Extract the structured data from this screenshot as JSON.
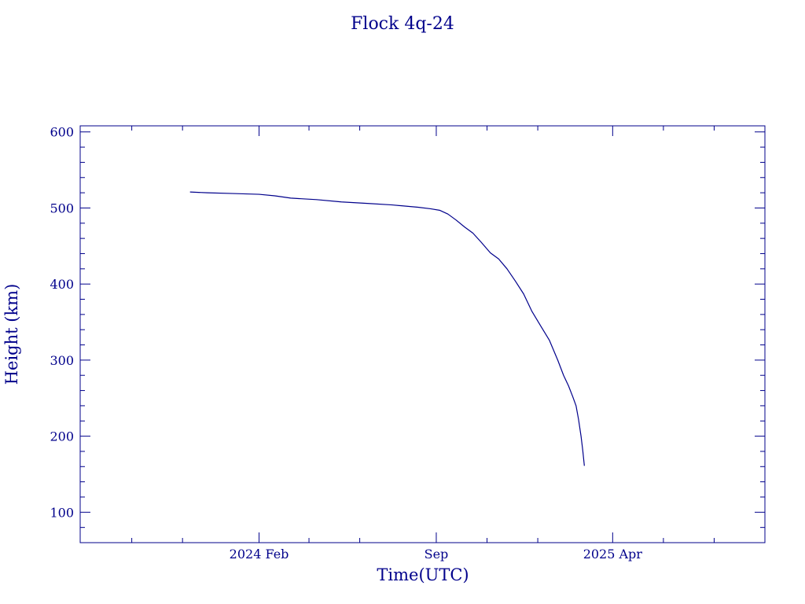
{
  "chart_data": {
    "type": "line",
    "title": "Flock 4q-24",
    "xlabel": "Time(UTC)",
    "ylabel": "Height (km)",
    "color": "#00008b",
    "grid": false,
    "legend": "none",
    "xlim": [
      "2023-07-01",
      "2025-10-01"
    ],
    "ylim": [
      60,
      608
    ],
    "x_ticks": [
      {
        "value": "2024-02-01",
        "label": "2024 Feb"
      },
      {
        "value": "2024-09-01",
        "label": "Sep"
      },
      {
        "value": "2025-04-01",
        "label": "2025 Apr"
      }
    ],
    "x_minor_ticks": [
      "2023-09-01",
      "2023-11-01",
      "2024-04-01",
      "2024-06-01",
      "2024-11-01",
      "2025-01-01",
      "2025-06-01",
      "2025-08-01"
    ],
    "y_ticks": [
      100,
      200,
      300,
      400,
      500,
      600
    ],
    "y_minor_step": 20,
    "series": [
      {
        "x": [
          "2023-11-10",
          "2023-12-01",
          "2024-01-01",
          "2024-02-01",
          "2024-02-20",
          "2024-03-10",
          "2024-04-10",
          "2024-05-10",
          "2024-06-10",
          "2024-07-10",
          "2024-08-10",
          "2024-08-25",
          "2024-09-05",
          "2024-09-15",
          "2024-09-25",
          "2024-10-05",
          "2024-10-15",
          "2024-10-25",
          "2024-11-05",
          "2024-11-15",
          "2024-11-25",
          "2024-12-05",
          "2024-12-15",
          "2024-12-25",
          "2025-01-05",
          "2025-01-15",
          "2025-01-25",
          "2025-02-01",
          "2025-02-07",
          "2025-02-12",
          "2025-02-16",
          "2025-02-19",
          "2025-02-22",
          "2025-02-24",
          "2025-02-26"
        ],
        "y": [
          521,
          520,
          519,
          518,
          516,
          513,
          511,
          508,
          506,
          504,
          501,
          499,
          497,
          492,
          484,
          475,
          467,
          455,
          441,
          433,
          420,
          404,
          387,
          364,
          344,
          326,
          300,
          280,
          266,
          252,
          240,
          222,
          200,
          182,
          161
        ]
      }
    ]
  }
}
